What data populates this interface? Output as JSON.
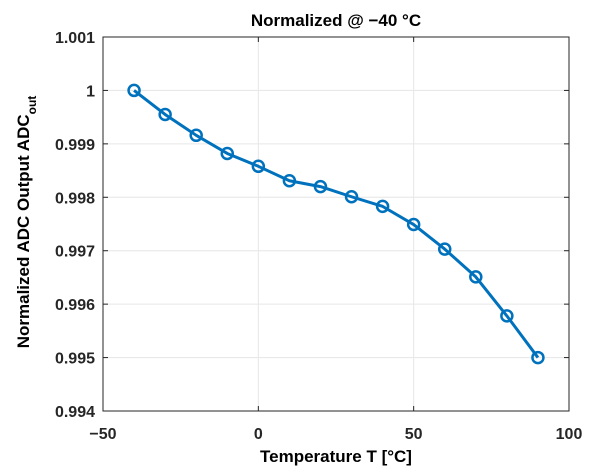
{
  "chart_data": {
    "type": "line",
    "title": "Normalized @ −40 °C",
    "xlabel": "Temperature T [°C]",
    "ylabel_main": "Normalized ADC Output ADC",
    "ylabel_sub": "out",
    "xlim": [
      -50,
      100
    ],
    "ylim": [
      0.994,
      1.001
    ],
    "x_ticks": [
      -50,
      0,
      50,
      100
    ],
    "x_tick_labels": [
      "−50",
      "0",
      "50",
      "100"
    ],
    "y_ticks": [
      0.994,
      0.995,
      0.996,
      0.997,
      0.998,
      0.999,
      1,
      1.001
    ],
    "y_tick_labels": [
      "0.994",
      "0.995",
      "0.996",
      "0.997",
      "0.998",
      "0.999",
      "1",
      "1.001"
    ],
    "grid": true,
    "marker": "circle",
    "line_color": "#0072BD",
    "series": [
      {
        "x": [
          -40,
          -30,
          -20,
          -10,
          0,
          10,
          20,
          30,
          40,
          50,
          60,
          70,
          80,
          90
        ],
        "values": [
          1.0,
          0.99955,
          0.99916,
          0.99882,
          0.99858,
          0.99831,
          0.9982,
          0.99801,
          0.99783,
          0.99749,
          0.99703,
          0.99651,
          0.99578,
          0.995
        ]
      }
    ]
  }
}
